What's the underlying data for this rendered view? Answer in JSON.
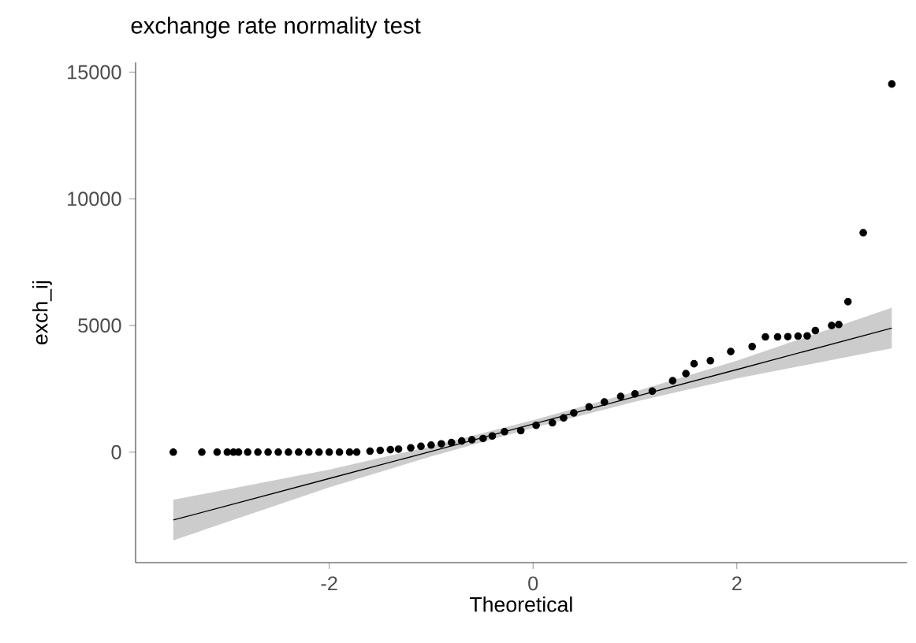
{
  "chart_data": {
    "type": "scatter",
    "title": "exchange rate normality test",
    "xlabel": "Theoretical",
    "ylabel": "exch_ij",
    "xlim": [
      -3.9,
      3.67
    ],
    "ylim": [
      -4360,
      15380
    ],
    "xticks": [
      -2,
      0,
      2
    ],
    "yticks": [
      0,
      5000,
      10000,
      15000
    ],
    "series": [
      {
        "type": "line",
        "marker": "none",
        "color": "#000000",
        "x": [
          -3.53,
          -2,
          -1,
          0,
          1,
          2,
          3.52
        ],
        "values": [
          -2680,
          -1040,
          30,
          1110,
          2190,
          3260,
          4900
        ],
        "lower": [
          -3480,
          -1390,
          -170,
          960,
          1990,
          2910,
          4100
        ],
        "upper": [
          -1880,
          -690,
          230,
          1260,
          2390,
          3610,
          5700
        ]
      },
      {
        "marker": "circle",
        "color": "#000000",
        "x": [
          -3.53,
          -3.25,
          -3.1,
          -3.0,
          -2.94,
          -2.89,
          -2.8,
          -2.7,
          -2.6,
          -2.5,
          -2.4,
          -2.3,
          -2.2,
          -2.1,
          -2.0,
          -1.9,
          -1.8,
          -1.73,
          -1.6,
          -1.5,
          -1.4,
          -1.32,
          -1.2,
          -1.1,
          -1.0,
          -0.9,
          -0.8,
          -0.7,
          -0.6,
          -0.49,
          -0.4,
          -0.28,
          -0.12,
          0.03,
          0.19,
          0.3,
          0.4,
          0.55,
          0.7,
          0.86,
          1.0,
          1.17,
          1.37,
          1.5,
          1.58,
          1.74,
          1.94,
          2.15,
          2.28,
          2.4,
          2.5,
          2.6,
          2.69,
          2.77,
          2.93,
          3.0,
          3.09,
          3.24,
          3.52
        ],
        "values": [
          0,
          0,
          0,
          0,
          0,
          0,
          0,
          0,
          0,
          0,
          0,
          0,
          0,
          0,
          0,
          0,
          0,
          0,
          40,
          70,
          100,
          120,
          170,
          230,
          280,
          330,
          380,
          440,
          490,
          540,
          640,
          810,
          850,
          1060,
          1160,
          1350,
          1550,
          1790,
          1980,
          2200,
          2300,
          2410,
          2820,
          3100,
          3490,
          3610,
          3970,
          4170,
          4550,
          4550,
          4560,
          4580,
          4590,
          4800,
          5000,
          5040,
          5940,
          8660,
          14530
        ]
      }
    ]
  }
}
